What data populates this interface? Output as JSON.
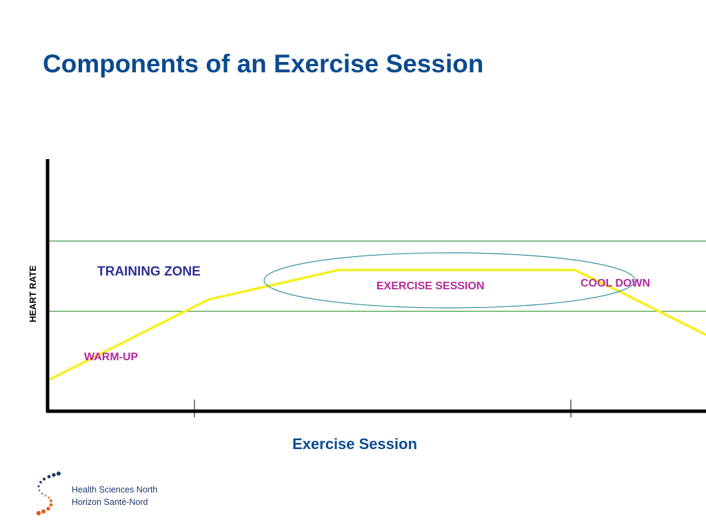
{
  "slide": {
    "title": "Components of an Exercise Session"
  },
  "diagram": {
    "y_axis_label": "HEART RATE",
    "x_axis_label": "Exercise Session",
    "zone_label": "TRAINING ZONE",
    "phases": {
      "warmup": "WARM-UP",
      "exercise": "EXERCISE SESSION",
      "cooldown": "COOL DOWN"
    },
    "colors": {
      "curve": "#f5f020",
      "zone_lines": "#3a9a3a",
      "axes": "#000000",
      "ellipse": "#2a8a9a"
    }
  },
  "logo": {
    "icon": "dotted-s-logo-icon",
    "line1": "Health Sciences North",
    "line2": "Horizon Santé-Nord"
  }
}
